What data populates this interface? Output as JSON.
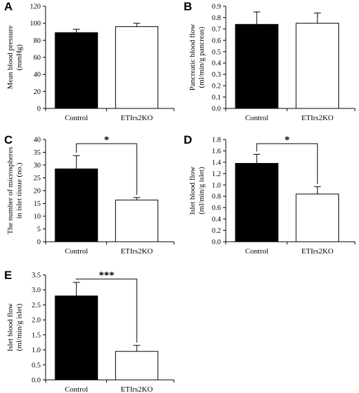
{
  "chart_data": [
    {
      "panel": "A",
      "type": "bar",
      "categories": [
        "Control",
        "ETIrs2KO"
      ],
      "values": [
        89,
        96
      ],
      "errors": [
        4,
        4
      ],
      "ylabel": [
        "Mean blood pressure",
        "(mmHg)"
      ],
      "ylim": [
        0,
        120
      ],
      "yticks": [
        0,
        20,
        40,
        60,
        80,
        100,
        120
      ],
      "tick_labels": [
        "0",
        "20",
        "40",
        "60",
        "80",
        "100",
        "120"
      ],
      "bar_colors": [
        "#000000",
        "#ffffff"
      ],
      "significance": ""
    },
    {
      "panel": "B",
      "type": "bar",
      "categories": [
        "Control",
        "ETIrs2KO"
      ],
      "values": [
        0.74,
        0.75
      ],
      "errors": [
        0.11,
        0.09
      ],
      "ylabel": [
        "Pancreatic blood flow",
        "(ml/min/g pancreas)"
      ],
      "ylim": [
        0,
        0.9
      ],
      "yticks": [
        0,
        0.1,
        0.2,
        0.3,
        0.4,
        0.5,
        0.6,
        0.7,
        0.8,
        0.9
      ],
      "tick_labels": [
        "0.0",
        "0.1",
        "0.2",
        "0.3",
        "0.4",
        "0.5",
        "0.6",
        "0.7",
        "0.8",
        "0.9"
      ],
      "bar_colors": [
        "#000000",
        "#ffffff"
      ],
      "significance": ""
    },
    {
      "panel": "C",
      "type": "bar",
      "categories": [
        "Control",
        "ETIrs2KO"
      ],
      "values": [
        28.5,
        16.3
      ],
      "errors": [
        5.2,
        1.0
      ],
      "ylabel": [
        "The number of microspheres",
        "in islet tissue (no.)"
      ],
      "ylim": [
        0,
        40
      ],
      "yticks": [
        0,
        5,
        10,
        15,
        20,
        25,
        30,
        35,
        40
      ],
      "tick_labels": [
        "0",
        "5",
        "10",
        "15",
        "20",
        "25",
        "30",
        "35",
        "40"
      ],
      "bar_colors": [
        "#000000",
        "#ffffff"
      ],
      "significance": "*"
    },
    {
      "panel": "D",
      "type": "bar",
      "categories": [
        "Control",
        "ETIrs2KO"
      ],
      "values": [
        1.38,
        0.84
      ],
      "errors": [
        0.16,
        0.13
      ],
      "ylabel": [
        "Islet blood flow",
        "(ml/min/g islet)"
      ],
      "ylim": [
        0,
        1.8
      ],
      "yticks": [
        0,
        0.2,
        0.4,
        0.6,
        0.8,
        1.0,
        1.2,
        1.4,
        1.6,
        1.8
      ],
      "tick_labels": [
        "0.0",
        "0.2",
        "0.4",
        "0.6",
        "0.8",
        "1.0",
        "1.2",
        "1.4",
        "1.6",
        "1.8"
      ],
      "bar_colors": [
        "#000000",
        "#ffffff"
      ],
      "significance": "*"
    },
    {
      "panel": "E",
      "type": "bar",
      "categories": [
        "Control",
        "ETIrs2KO"
      ],
      "values": [
        2.8,
        0.95
      ],
      "errors": [
        0.45,
        0.2
      ],
      "ylabel": [
        "Islet blood flow",
        "(ml/min/g islet)"
      ],
      "ylim": [
        0,
        3.5
      ],
      "yticks": [
        0,
        0.5,
        1.0,
        1.5,
        2.0,
        2.5,
        3.0,
        3.5
      ],
      "tick_labels": [
        "0.0",
        "0.5",
        "1.0",
        "1.5",
        "2.0",
        "2.5",
        "3.0",
        "3.5"
      ],
      "bar_colors": [
        "#000000",
        "#ffffff"
      ],
      "significance": "***"
    }
  ]
}
